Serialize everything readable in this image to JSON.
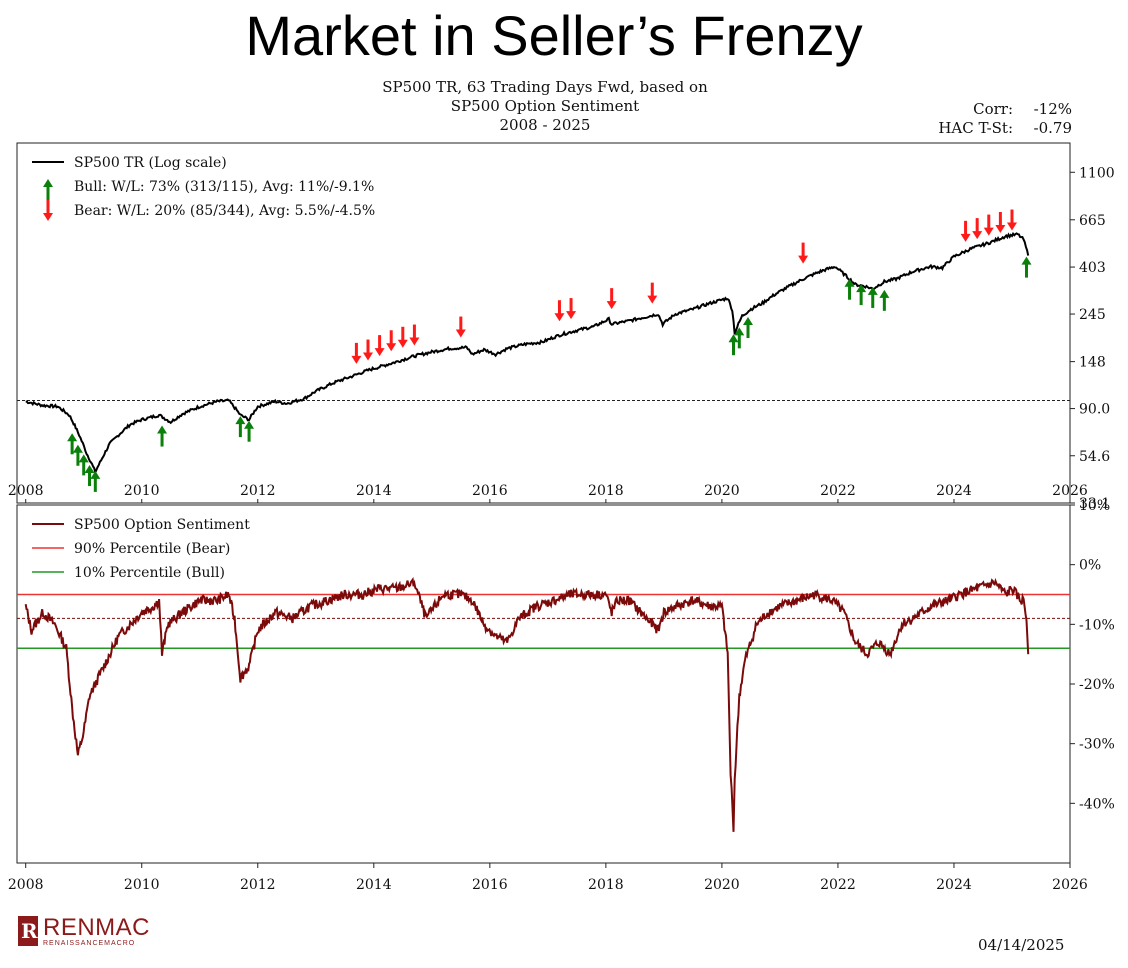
{
  "slide": {
    "title": "Market in Seller’s Frenzy",
    "date": "04/14/2025"
  },
  "chart_title": {
    "line1": "SP500 TR, 63 Trading Days Fwd, based on",
    "line2": "SP500 Option Sentiment",
    "line3": "2008 - 2025"
  },
  "stats": {
    "corr_label": "Corr:",
    "corr_value": "-12%",
    "hac_label": "HAC T-St:",
    "hac_value": "-0.79"
  },
  "logo": {
    "name": "RENMAC",
    "tagline": "RENAISSANCEMACRO"
  },
  "colors": {
    "price": "#000000",
    "sentiment": "#7b0a0a",
    "bear": "#ff1a1a",
    "bull": "#0a7f0a",
    "bear_line": "#ee3333",
    "bull_line": "#229922"
  },
  "chart_data": [
    {
      "type": "line",
      "legend": [
        "SP500 TR (Log scale)",
        "Bull:  W/L: 73% (313/115), Avg: 11%/-9.1%",
        "Bear:  W/L: 20% (85/344), Avg: 5.5%/-4.5%"
      ],
      "legend_position": "top-left",
      "y_scale": "log",
      "ylim": [
        33.1,
        1500
      ],
      "y_ticks": [
        "1100",
        "665",
        "403",
        "245",
        "148",
        "90.0",
        "54.6",
        "33.1"
      ],
      "x_ticks": [
        "2008",
        "2010",
        "2012",
        "2014",
        "2016",
        "2018",
        "2020",
        "2022",
        "2024",
        "2026"
      ],
      "xlim": [
        2007.85,
        2026.0
      ],
      "reference_line_value": 98,
      "series": [
        {
          "name": "SP500 TR (Log scale)",
          "x": [
            2008.0,
            2008.3,
            2008.55,
            2008.75,
            2008.9,
            2009.05,
            2009.2,
            2009.3,
            2009.45,
            2009.6,
            2009.8,
            2010.0,
            2010.3,
            2010.5,
            2010.7,
            2011.0,
            2011.3,
            2011.5,
            2011.7,
            2011.85,
            2012.0,
            2012.3,
            2012.5,
            2012.8,
            2013.0,
            2013.3,
            2013.6,
            2013.9,
            2014.1,
            2014.4,
            2014.7,
            2015.0,
            2015.3,
            2015.6,
            2015.7,
            2015.9,
            2016.1,
            2016.3,
            2016.6,
            2016.9,
            2017.2,
            2017.5,
            2017.8,
            2018.05,
            2018.1,
            2018.4,
            2018.7,
            2018.9,
            2018.98,
            2019.2,
            2019.5,
            2019.8,
            2020.1,
            2020.18,
            2020.22,
            2020.35,
            2020.5,
            2020.7,
            2020.9,
            2021.1,
            2021.4,
            2021.7,
            2021.95,
            2022.1,
            2022.3,
            2022.45,
            2022.6,
            2022.8,
            2023.0,
            2023.3,
            2023.6,
            2023.8,
            2024.0,
            2024.3,
            2024.6,
            2024.9,
            2025.1,
            2025.2,
            2025.28
          ],
          "y": [
            97,
            93,
            92,
            84,
            70,
            56,
            46,
            52,
            62,
            68,
            76,
            80,
            84,
            78,
            85,
            92,
            97,
            98,
            84,
            80,
            92,
            97,
            95,
            100,
            108,
            118,
            126,
            135,
            140,
            148,
            157,
            164,
            170,
            172,
            160,
            168,
            160,
            170,
            178,
            182,
            196,
            206,
            215,
            232,
            220,
            228,
            238,
            245,
            220,
            245,
            258,
            275,
            290,
            255,
            200,
            240,
            258,
            275,
            300,
            322,
            355,
            385,
            405,
            375,
            335,
            330,
            320,
            345,
            355,
            385,
            405,
            400,
            450,
            490,
            520,
            560,
            570,
            540,
            455
          ]
        }
      ],
      "signals": {
        "bull": {
          "x": [
            2008.8,
            2008.9,
            2009.0,
            2009.1,
            2009.2,
            2010.35,
            2011.7,
            2011.85,
            2020.2,
            2020.3,
            2020.45,
            2022.2,
            2022.4,
            2022.6,
            2022.8,
            2025.25
          ],
          "y": [
            70,
            62,
            56,
            50,
            47,
            76,
            84,
            80,
            200,
            215,
            240,
            360,
            340,
            330,
            320,
            455
          ]
        },
        "bear": {
          "x": [
            2013.7,
            2013.9,
            2014.1,
            2014.3,
            2014.5,
            2014.7,
            2015.5,
            2017.2,
            2017.4,
            2018.1,
            2018.8,
            2021.4,
            2024.2,
            2024.4,
            2024.6,
            2024.8,
            2025.0
          ],
          "y": [
            140,
            145,
            152,
            160,
            166,
            170,
            185,
            220,
            225,
            250,
            265,
            405,
            510,
            525,
            545,
            560,
            575
          ]
        }
      }
    },
    {
      "type": "line",
      "legend": [
        "SP500 Option Sentiment",
        "90% Percentile (Bear)",
        "10% Percentile (Bull)"
      ],
      "legend_position": "top-left",
      "ylim": [
        -50,
        10
      ],
      "y_ticks": [
        "10%",
        "0%",
        "-10%",
        "-20%",
        "-30%",
        "-40%"
      ],
      "x_ticks": [
        "2008",
        "2010",
        "2012",
        "2014",
        "2016",
        "2018",
        "2020",
        "2022",
        "2024",
        "2026"
      ],
      "xlim": [
        2007.85,
        2026.0
      ],
      "reference_lines": {
        "bear_90pct": -5,
        "bull_10pct": -14,
        "median": -9
      },
      "series": [
        {
          "name": "SP500 Option Sentiment",
          "x": [
            2008.0,
            2008.1,
            2008.3,
            2008.5,
            2008.7,
            2008.8,
            2008.9,
            2009.0,
            2009.1,
            2009.2,
            2009.4,
            2009.6,
            2009.8,
            2010.0,
            2010.2,
            2010.3,
            2010.35,
            2010.45,
            2010.7,
            2011.0,
            2011.3,
            2011.5,
            2011.6,
            2011.7,
            2011.85,
            2012.0,
            2012.3,
            2012.6,
            2012.9,
            2013.2,
            2013.5,
            2013.8,
            2014.1,
            2014.4,
            2014.7,
            2014.9,
            2015.2,
            2015.5,
            2015.7,
            2015.9,
            2016.1,
            2016.3,
            2016.5,
            2016.8,
            2017.1,
            2017.4,
            2017.7,
            2018.0,
            2018.1,
            2018.2,
            2018.4,
            2018.7,
            2018.9,
            2019.0,
            2019.2,
            2019.5,
            2019.8,
            2020.0,
            2020.1,
            2020.15,
            2020.2,
            2020.22,
            2020.3,
            2020.4,
            2020.6,
            2020.8,
            2021.0,
            2021.3,
            2021.6,
            2021.9,
            2022.1,
            2022.3,
            2022.5,
            2022.7,
            2022.9,
            2023.1,
            2023.3,
            2023.6,
            2023.9,
            2024.1,
            2024.4,
            2024.7,
            2024.9,
            2025.0,
            2025.15,
            2025.2,
            2025.25,
            2025.28
          ],
          "y": [
            -7,
            -11,
            -8,
            -10,
            -14,
            -24,
            -32,
            -28,
            -22,
            -20,
            -16,
            -12,
            -10,
            -8,
            -7,
            -6,
            -15,
            -10,
            -8,
            -6,
            -6,
            -5,
            -9,
            -19,
            -17,
            -11,
            -8,
            -9,
            -7,
            -6,
            -5,
            -5,
            -4,
            -4,
            -3,
            -9,
            -5,
            -5,
            -6,
            -10,
            -12,
            -13,
            -9,
            -7,
            -6,
            -5,
            -5,
            -5,
            -8,
            -6,
            -6,
            -9,
            -11,
            -8,
            -7,
            -6,
            -7,
            -7,
            -15,
            -35,
            -44,
            -36,
            -22,
            -16,
            -10,
            -8,
            -7,
            -6,
            -5,
            -6,
            -8,
            -13,
            -15,
            -13,
            -15,
            -10,
            -9,
            -7,
            -6,
            -5,
            -4,
            -3,
            -5,
            -4,
            -6,
            -6,
            -9,
            -15
          ]
        }
      ]
    }
  ]
}
